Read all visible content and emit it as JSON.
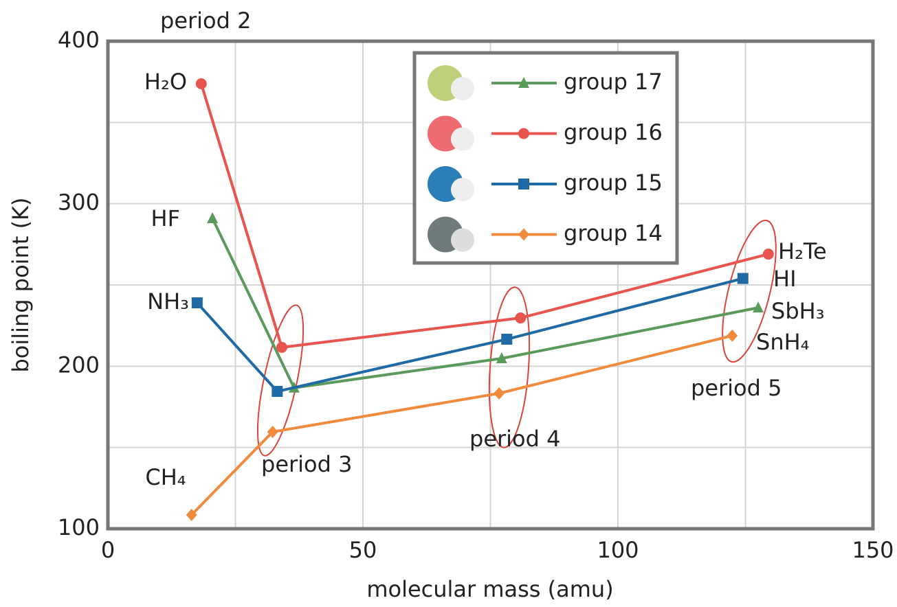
{
  "chart_data": {
    "type": "line",
    "xlabel": "molecular mass (amu)",
    "ylabel": "boiling point (K)",
    "xlim": [
      0,
      150
    ],
    "xticks": [
      0,
      50,
      100,
      150
    ],
    "xminor": [
      25,
      75,
      125
    ],
    "ylim": [
      100,
      400
    ],
    "yticks": [
      100,
      200,
      300,
      400
    ],
    "yminor": [
      150,
      250,
      350
    ],
    "grid": true,
    "series": [
      {
        "name": "group 17",
        "color": "#5a9a5a",
        "marker": "triangle",
        "x": [
          20.5,
          36.5,
          77.2,
          127.5
        ],
        "values": [
          291,
          186.7,
          204.8,
          236
        ]
      },
      {
        "name": "group 16",
        "color": "#e8554e",
        "marker": "circle",
        "x": [
          18.3,
          34.1,
          80.9,
          129.5
        ],
        "values": [
          373.8,
          211.6,
          229.7,
          269
        ]
      },
      {
        "name": "group 15",
        "color": "#1f6aa5",
        "marker": "square",
        "x": [
          17.5,
          33.2,
          78.2,
          124.5
        ],
        "values": [
          239,
          184.5,
          216.6,
          254
        ]
      },
      {
        "name": "group 14",
        "color": "#f08a3c",
        "marker": "diamond",
        "x": [
          16.4,
          32.3,
          76.7,
          122.4
        ],
        "values": [
          108.5,
          159.6,
          183.3,
          218.8
        ]
      }
    ],
    "annotations": [
      "period 2",
      "H₂O",
      "HF",
      "NH₃",
      "CH₄",
      "H₂Te",
      "HI",
      "SbH₃",
      "SnH₄",
      "period 3",
      "period 4",
      "period 5"
    ]
  }
}
